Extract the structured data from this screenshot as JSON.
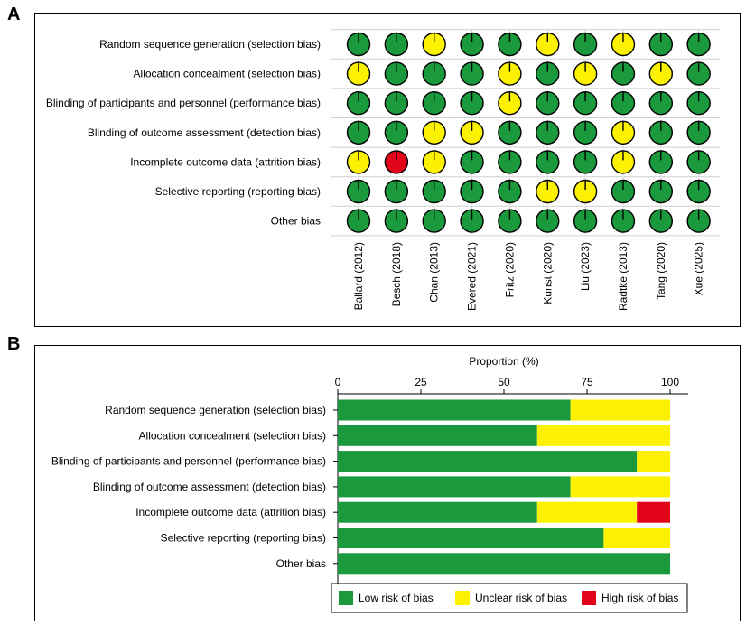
{
  "panels": {
    "a_label": "A",
    "b_label": "B"
  },
  "colors": {
    "low": "#1a9a3c",
    "unclear": "#fbf100",
    "high": "#e2051a"
  },
  "chart_data": [
    {
      "type": "table",
      "domains": [
        "Random sequence generation (selection bias)",
        "Allocation concealment (selection bias)",
        "Blinding of participants and personnel (performance bias)",
        "Blinding of outcome assessment (detection bias)",
        "Incomplete outcome data (attrition bias)",
        "Selective reporting (reporting bias)",
        "Other bias"
      ],
      "studies": [
        "Ballard (2012)",
        "Besch (2018)",
        "Chan (2013)",
        "Evered (2021)",
        "Fritz (2020)",
        "Kunst (2020)",
        "Liu (2023)",
        "Radtke (2013)",
        "Tang (2020)",
        "Xue (2025)"
      ],
      "judgements": [
        [
          "low",
          "low",
          "unclear",
          "low",
          "low",
          "unclear",
          "low",
          "unclear",
          "low",
          "low"
        ],
        [
          "unclear",
          "low",
          "low",
          "low",
          "unclear",
          "low",
          "unclear",
          "low",
          "unclear",
          "low"
        ],
        [
          "low",
          "low",
          "low",
          "low",
          "unclear",
          "low",
          "low",
          "low",
          "low",
          "low"
        ],
        [
          "low",
          "low",
          "unclear",
          "unclear",
          "low",
          "low",
          "low",
          "unclear",
          "low",
          "low"
        ],
        [
          "unclear",
          "high",
          "unclear",
          "low",
          "low",
          "low",
          "low",
          "unclear",
          "low",
          "low"
        ],
        [
          "low",
          "low",
          "low",
          "low",
          "low",
          "unclear",
          "unclear",
          "low",
          "low",
          "low"
        ],
        [
          "low",
          "low",
          "low",
          "low",
          "low",
          "low",
          "low",
          "low",
          "low",
          "low"
        ]
      ]
    },
    {
      "type": "bar",
      "orientation": "horizontal",
      "stacked": true,
      "title": "Proportion (%)",
      "xlim": [
        0,
        100
      ],
      "xticks": [
        0,
        25,
        50,
        75,
        100
      ],
      "xaxis_position": "top",
      "categories": [
        "Random sequence generation (selection bias)",
        "Allocation concealment (selection bias)",
        "Blinding of participants and personnel (performance bias)",
        "Blinding of outcome assessment (detection bias)",
        "Incomplete outcome data (attrition bias)",
        "Selective reporting (reporting bias)",
        "Other bias"
      ],
      "series": [
        {
          "name": "Low risk of bias",
          "color": "#1a9a3c",
          "values": [
            70,
            60,
            90,
            70,
            60,
            80,
            100
          ]
        },
        {
          "name": "Unclear risk of bias",
          "color": "#fbf100",
          "values": [
            30,
            40,
            10,
            30,
            30,
            20,
            0
          ]
        },
        {
          "name": "High risk of bias",
          "color": "#e2051a",
          "values": [
            0,
            0,
            0,
            0,
            10,
            0,
            0
          ]
        }
      ],
      "legend_position": "bottom"
    }
  ]
}
